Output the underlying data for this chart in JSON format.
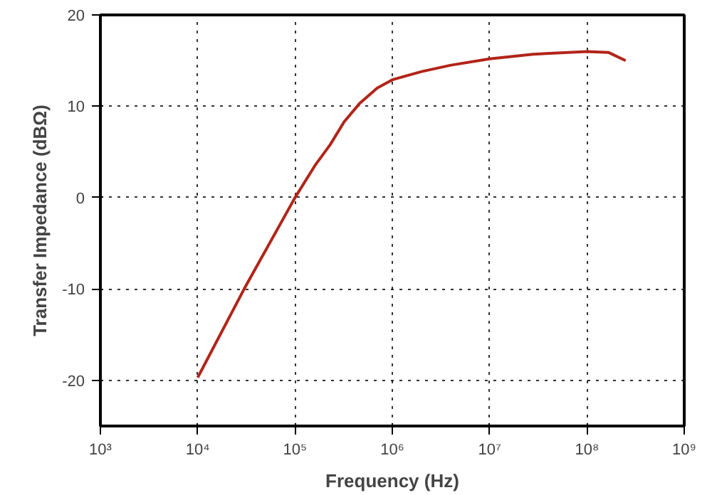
{
  "chart_data": {
    "type": "line",
    "xlabel": "Frequency (Hz)",
    "ylabel": "Transfer Impedance (dBΩ)",
    "x": [
      10000,
      30000,
      100000,
      160000,
      230000,
      320000,
      460000,
      700000,
      1000000,
      2000000,
      4000000,
      10000000,
      28000000,
      100000000,
      166000000,
      250000000
    ],
    "series": [
      {
        "color": "#b22418",
        "values": [
          -19.7,
          -10,
          0,
          3.5,
          5.8,
          8.3,
          10.3,
          12,
          12.9,
          13.8,
          14.5,
          15.2,
          15.7,
          16.0,
          15.9,
          15.0
        ]
      }
    ],
    "log": "x",
    "xlim": [
      1000,
      1000000000
    ],
    "ylim": [
      -25,
      20
    ],
    "xticks": [
      {
        "value": 1000,
        "label": "10³"
      },
      {
        "value": 10000,
        "label": "10⁴"
      },
      {
        "value": 100000,
        "label": "10⁵"
      },
      {
        "value": 1000000,
        "label": "10⁶"
      },
      {
        "value": 10000000,
        "label": "10⁷"
      },
      {
        "value": 100000000,
        "label": "10⁸"
      },
      {
        "value": 1000000000,
        "label": "10⁹"
      }
    ],
    "yticks": [
      -20,
      -10,
      0,
      10,
      20
    ],
    "grid": true,
    "line_style": "solid"
  }
}
